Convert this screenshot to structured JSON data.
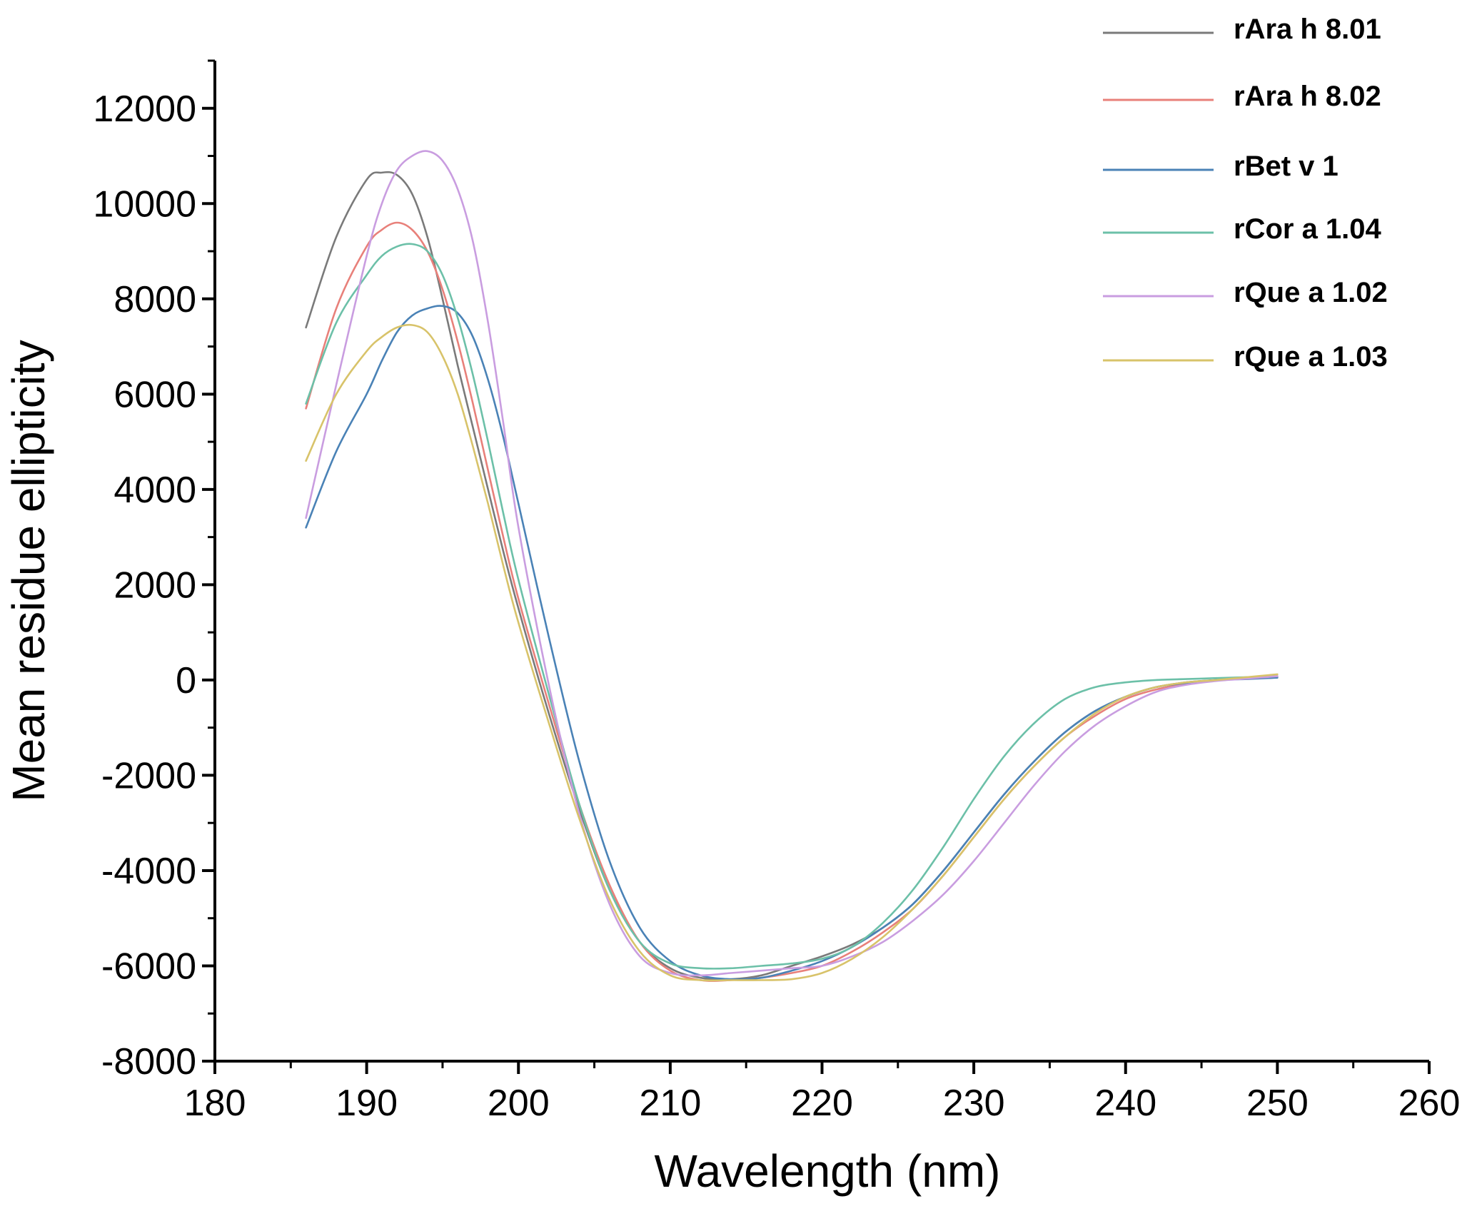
{
  "chart_data": {
    "type": "line",
    "title": "",
    "xlabel": "Wavelength (nm)",
    "ylabel": "Mean residue ellipticity",
    "xlim": [
      180,
      260
    ],
    "ylim": [
      -8000,
      13000
    ],
    "x_ticks": [
      180,
      190,
      200,
      210,
      220,
      230,
      240,
      250,
      260
    ],
    "y_ticks": [
      -8000,
      -6000,
      -4000,
      -2000,
      0,
      2000,
      4000,
      6000,
      8000,
      10000,
      12000
    ],
    "x_tick_labels": [
      "180",
      "190",
      "200",
      "210",
      "220",
      "230",
      "240",
      "250",
      "260"
    ],
    "y_tick_labels": [
      "-8000",
      "-6000",
      "-4000",
      "-2000",
      "0",
      "2000",
      "4000",
      "6000",
      "8000",
      "10000",
      "12000"
    ],
    "grid": false,
    "legend_position": "top-right",
    "series": [
      {
        "name": "rAra h 8.01",
        "color": "#7a7a7a",
        "x": [
          186,
          188,
          190,
          191,
          192,
          193,
          194,
          195,
          196,
          197,
          198,
          199,
          200,
          202,
          204,
          206,
          208,
          210,
          212,
          214,
          216,
          218,
          220,
          222,
          224,
          226,
          228,
          230,
          232,
          234,
          236,
          238,
          240,
          242,
          244,
          246,
          248,
          250
        ],
        "values": [
          7400,
          9300,
          10500,
          10650,
          10600,
          10200,
          9300,
          8000,
          6600,
          5300,
          4000,
          2700,
          1500,
          -700,
          -2700,
          -4400,
          -5500,
          -6050,
          -6250,
          -6280,
          -6200,
          -6000,
          -5800,
          -5550,
          -5200,
          -4700,
          -4000,
          -3200,
          -2400,
          -1700,
          -1100,
          -650,
          -350,
          -150,
          -50,
          0,
          30,
          50
        ]
      },
      {
        "name": "rAra h 8.02",
        "color": "#e8807a",
        "x": [
          186,
          188,
          190,
          191,
          192,
          193,
          194,
          195,
          196,
          197,
          198,
          199,
          200,
          202,
          204,
          206,
          208,
          210,
          212,
          214,
          216,
          218,
          220,
          222,
          224,
          226,
          228,
          230,
          232,
          234,
          236,
          238,
          240,
          242,
          244,
          246,
          248,
          250
        ],
        "values": [
          5700,
          7800,
          9100,
          9450,
          9600,
          9450,
          9000,
          8200,
          7100,
          5800,
          4400,
          3000,
          1700,
          -500,
          -2600,
          -4300,
          -5500,
          -6100,
          -6300,
          -6300,
          -6250,
          -6150,
          -6000,
          -5700,
          -5300,
          -4800,
          -4100,
          -3300,
          -2500,
          -1800,
          -1200,
          -750,
          -400,
          -200,
          -80,
          0,
          40,
          80
        ]
      },
      {
        "name": "rBet v 1",
        "color": "#4a82b6",
        "x": [
          186,
          188,
          190,
          191,
          192,
          193,
          194,
          195,
          196,
          197,
          198,
          199,
          200,
          202,
          204,
          206,
          208,
          210,
          212,
          214,
          216,
          218,
          220,
          222,
          224,
          226,
          228,
          230,
          232,
          234,
          236,
          238,
          240,
          242,
          244,
          246,
          248,
          250
        ],
        "values": [
          3200,
          4800,
          6000,
          6700,
          7300,
          7650,
          7800,
          7850,
          7700,
          7200,
          6300,
          5100,
          3700,
          900,
          -1700,
          -3800,
          -5200,
          -5900,
          -6200,
          -6280,
          -6250,
          -6100,
          -5900,
          -5600,
          -5200,
          -4700,
          -4000,
          -3200,
          -2400,
          -1700,
          -1100,
          -650,
          -350,
          -150,
          -60,
          0,
          20,
          50
        ]
      },
      {
        "name": "rCor a 1.04",
        "color": "#6cc0a8",
        "x": [
          186,
          188,
          190,
          191,
          192,
          193,
          194,
          195,
          196,
          197,
          198,
          199,
          200,
          202,
          204,
          206,
          208,
          210,
          212,
          214,
          216,
          218,
          220,
          222,
          224,
          226,
          228,
          230,
          232,
          234,
          236,
          238,
          240,
          242,
          244,
          246,
          248,
          250
        ],
        "values": [
          5800,
          7500,
          8500,
          8900,
          9100,
          9150,
          9000,
          8500,
          7600,
          6400,
          5000,
          3500,
          2100,
          -300,
          -2600,
          -4400,
          -5500,
          -5950,
          -6050,
          -6050,
          -6000,
          -5950,
          -5850,
          -5600,
          -5100,
          -4400,
          -3500,
          -2500,
          -1600,
          -900,
          -400,
          -150,
          -50,
          0,
          20,
          40,
          60,
          80
        ]
      },
      {
        "name": "rQue a 1.02",
        "color": "#c99de0",
        "x": [
          186,
          188,
          190,
          191,
          192,
          193,
          194,
          195,
          196,
          197,
          198,
          199,
          200,
          202,
          204,
          206,
          208,
          210,
          212,
          214,
          216,
          218,
          220,
          222,
          224,
          226,
          228,
          230,
          232,
          234,
          236,
          238,
          240,
          242,
          244,
          246,
          248,
          250
        ],
        "values": [
          3400,
          6200,
          8900,
          10000,
          10700,
          11000,
          11100,
          10900,
          10300,
          9200,
          7500,
          5400,
          3200,
          -100,
          -2800,
          -4700,
          -5800,
          -6150,
          -6200,
          -6150,
          -6100,
          -6050,
          -6000,
          -5800,
          -5500,
          -5050,
          -4500,
          -3800,
          -3000,
          -2200,
          -1500,
          -950,
          -550,
          -250,
          -100,
          -20,
          30,
          80
        ]
      },
      {
        "name": "rQue a 1.03",
        "color": "#d8c36a",
        "x": [
          186,
          188,
          190,
          191,
          192,
          193,
          194,
          195,
          196,
          197,
          198,
          199,
          200,
          202,
          204,
          206,
          208,
          210,
          212,
          214,
          216,
          218,
          220,
          222,
          224,
          226,
          228,
          230,
          232,
          234,
          236,
          238,
          240,
          242,
          244,
          246,
          248,
          250
        ],
        "values": [
          4600,
          6000,
          6900,
          7200,
          7400,
          7450,
          7300,
          6800,
          6000,
          4900,
          3700,
          2400,
          1200,
          -900,
          -2900,
          -4600,
          -5700,
          -6200,
          -6300,
          -6300,
          -6300,
          -6280,
          -6150,
          -5850,
          -5400,
          -4800,
          -4100,
          -3300,
          -2500,
          -1800,
          -1200,
          -700,
          -350,
          -150,
          -50,
          0,
          60,
          120
        ]
      }
    ]
  }
}
